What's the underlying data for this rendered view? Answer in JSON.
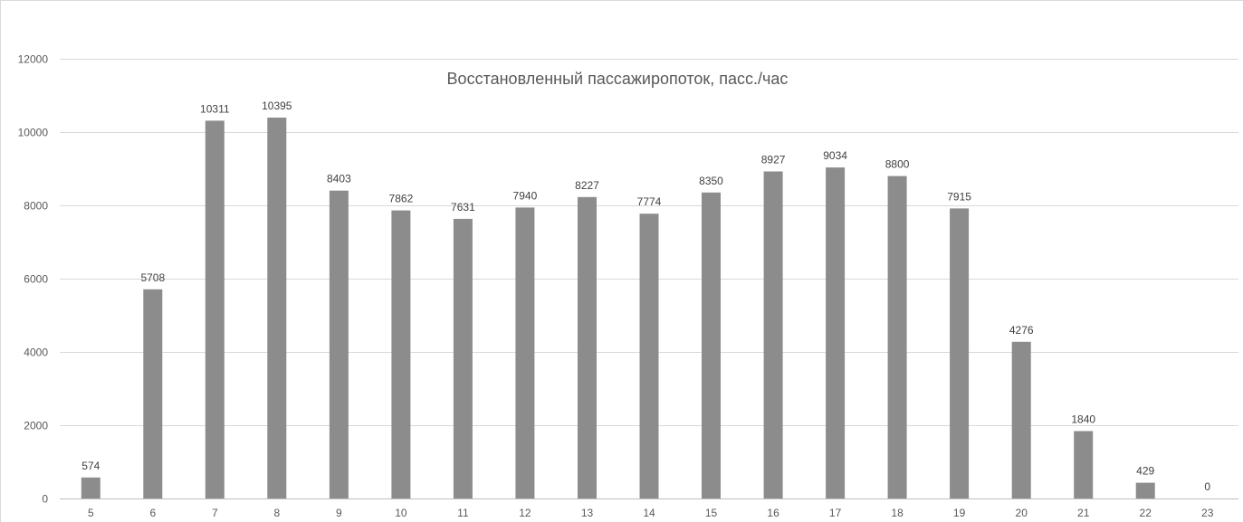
{
  "chart_data": {
    "type": "bar",
    "title": "Восстановленный пассажиропоток, пасс./час",
    "xlabel": "",
    "ylabel": "",
    "categories": [
      "5",
      "6",
      "7",
      "8",
      "9",
      "10",
      "11",
      "12",
      "13",
      "14",
      "15",
      "16",
      "17",
      "18",
      "19",
      "20",
      "21",
      "22",
      "23"
    ],
    "series": [
      {
        "values": [
          574,
          5708,
          10311,
          10395,
          8403,
          7862,
          7631,
          7940,
          8227,
          7774,
          8350,
          8927,
          9034,
          8800,
          7915,
          4276,
          1840,
          429,
          0
        ]
      }
    ],
    "data_labels": [
      "574",
      "5708",
      "10311",
      "10395",
      "8403",
      "7862",
      "7631",
      "7940",
      "8227",
      "7774",
      "8350",
      "8927",
      "9034",
      "8800",
      "7915",
      "4276",
      "1840",
      "429",
      "0"
    ],
    "ylim": [
      0,
      12000
    ],
    "yticks": [
      "0",
      "2000",
      "4000",
      "6000",
      "8000",
      "10000",
      "12000"
    ],
    "grid": true,
    "legend": "none",
    "colors": {
      "bar": "#8c8c8c",
      "grid": "#d9d9d9",
      "axis": "#bfbfbf",
      "text": "#595959"
    }
  }
}
